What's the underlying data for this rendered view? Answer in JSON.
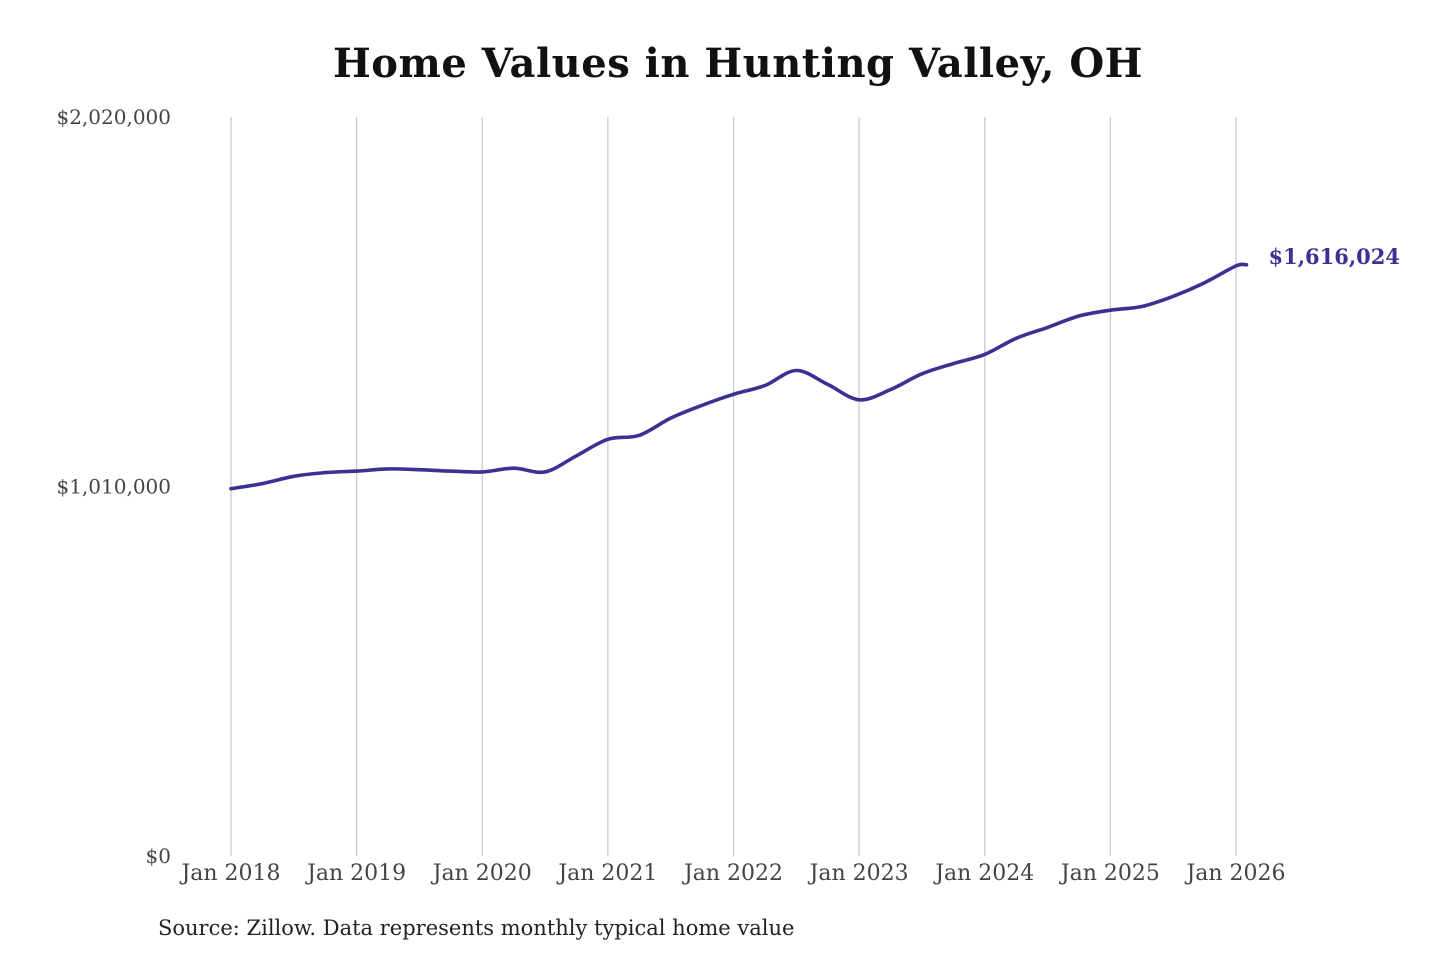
{
  "chart_data": {
    "type": "line",
    "title": "Home Values in Hunting Valley, OH",
    "source": "Source: Zillow. Data represents monthly typical home value",
    "xlabel": "",
    "ylabel": "",
    "ylim": [
      0,
      2020000
    ],
    "xlim": [
      "2018-01",
      "2026-01"
    ],
    "grid": "vertical",
    "y_ticks": [
      {
        "value": 0,
        "label": "$0"
      },
      {
        "value": 1010000,
        "label": "$1,010,000"
      },
      {
        "value": 2020000,
        "label": "$2,020,000"
      }
    ],
    "x_ticks": [
      {
        "value": "2018-01",
        "label": "Jan 2018"
      },
      {
        "value": "2019-01",
        "label": "Jan 2019"
      },
      {
        "value": "2020-01",
        "label": "Jan 2020"
      },
      {
        "value": "2021-01",
        "label": "Jan 2021"
      },
      {
        "value": "2022-01",
        "label": "Jan 2022"
      },
      {
        "value": "2023-01",
        "label": "Jan 2023"
      },
      {
        "value": "2024-01",
        "label": "Jan 2024"
      },
      {
        "value": "2025-01",
        "label": "Jan 2025"
      },
      {
        "value": "2026-01",
        "label": "Jan 2026"
      }
    ],
    "line_color": "#3a3192",
    "end_label": "$1,616,024",
    "series": [
      {
        "name": "",
        "x": [
          "2018-01",
          "2018-04",
          "2018-07",
          "2018-10",
          "2019-01",
          "2019-04",
          "2019-07",
          "2019-10",
          "2020-01",
          "2020-04",
          "2020-07",
          "2020-10",
          "2021-01",
          "2021-04",
          "2021-07",
          "2021-10",
          "2022-01",
          "2022-04",
          "2022-07",
          "2022-10",
          "2023-01",
          "2023-04",
          "2023-07",
          "2023-10",
          "2024-01",
          "2024-04",
          "2024-07",
          "2024-10",
          "2025-01",
          "2025-04",
          "2025-07",
          "2025-10",
          "2026-01",
          "2026-02"
        ],
        "values": [
          1004000,
          1018000,
          1038000,
          1048000,
          1052000,
          1058000,
          1056000,
          1052000,
          1050000,
          1060000,
          1050000,
          1094000,
          1139000,
          1150000,
          1197000,
          1232000,
          1262000,
          1286000,
          1327000,
          1289000,
          1247000,
          1275000,
          1318000,
          1346000,
          1371000,
          1415000,
          1445000,
          1476000,
          1492000,
          1502000,
          1530000,
          1567000,
          1613000,
          1616024
        ]
      }
    ]
  }
}
